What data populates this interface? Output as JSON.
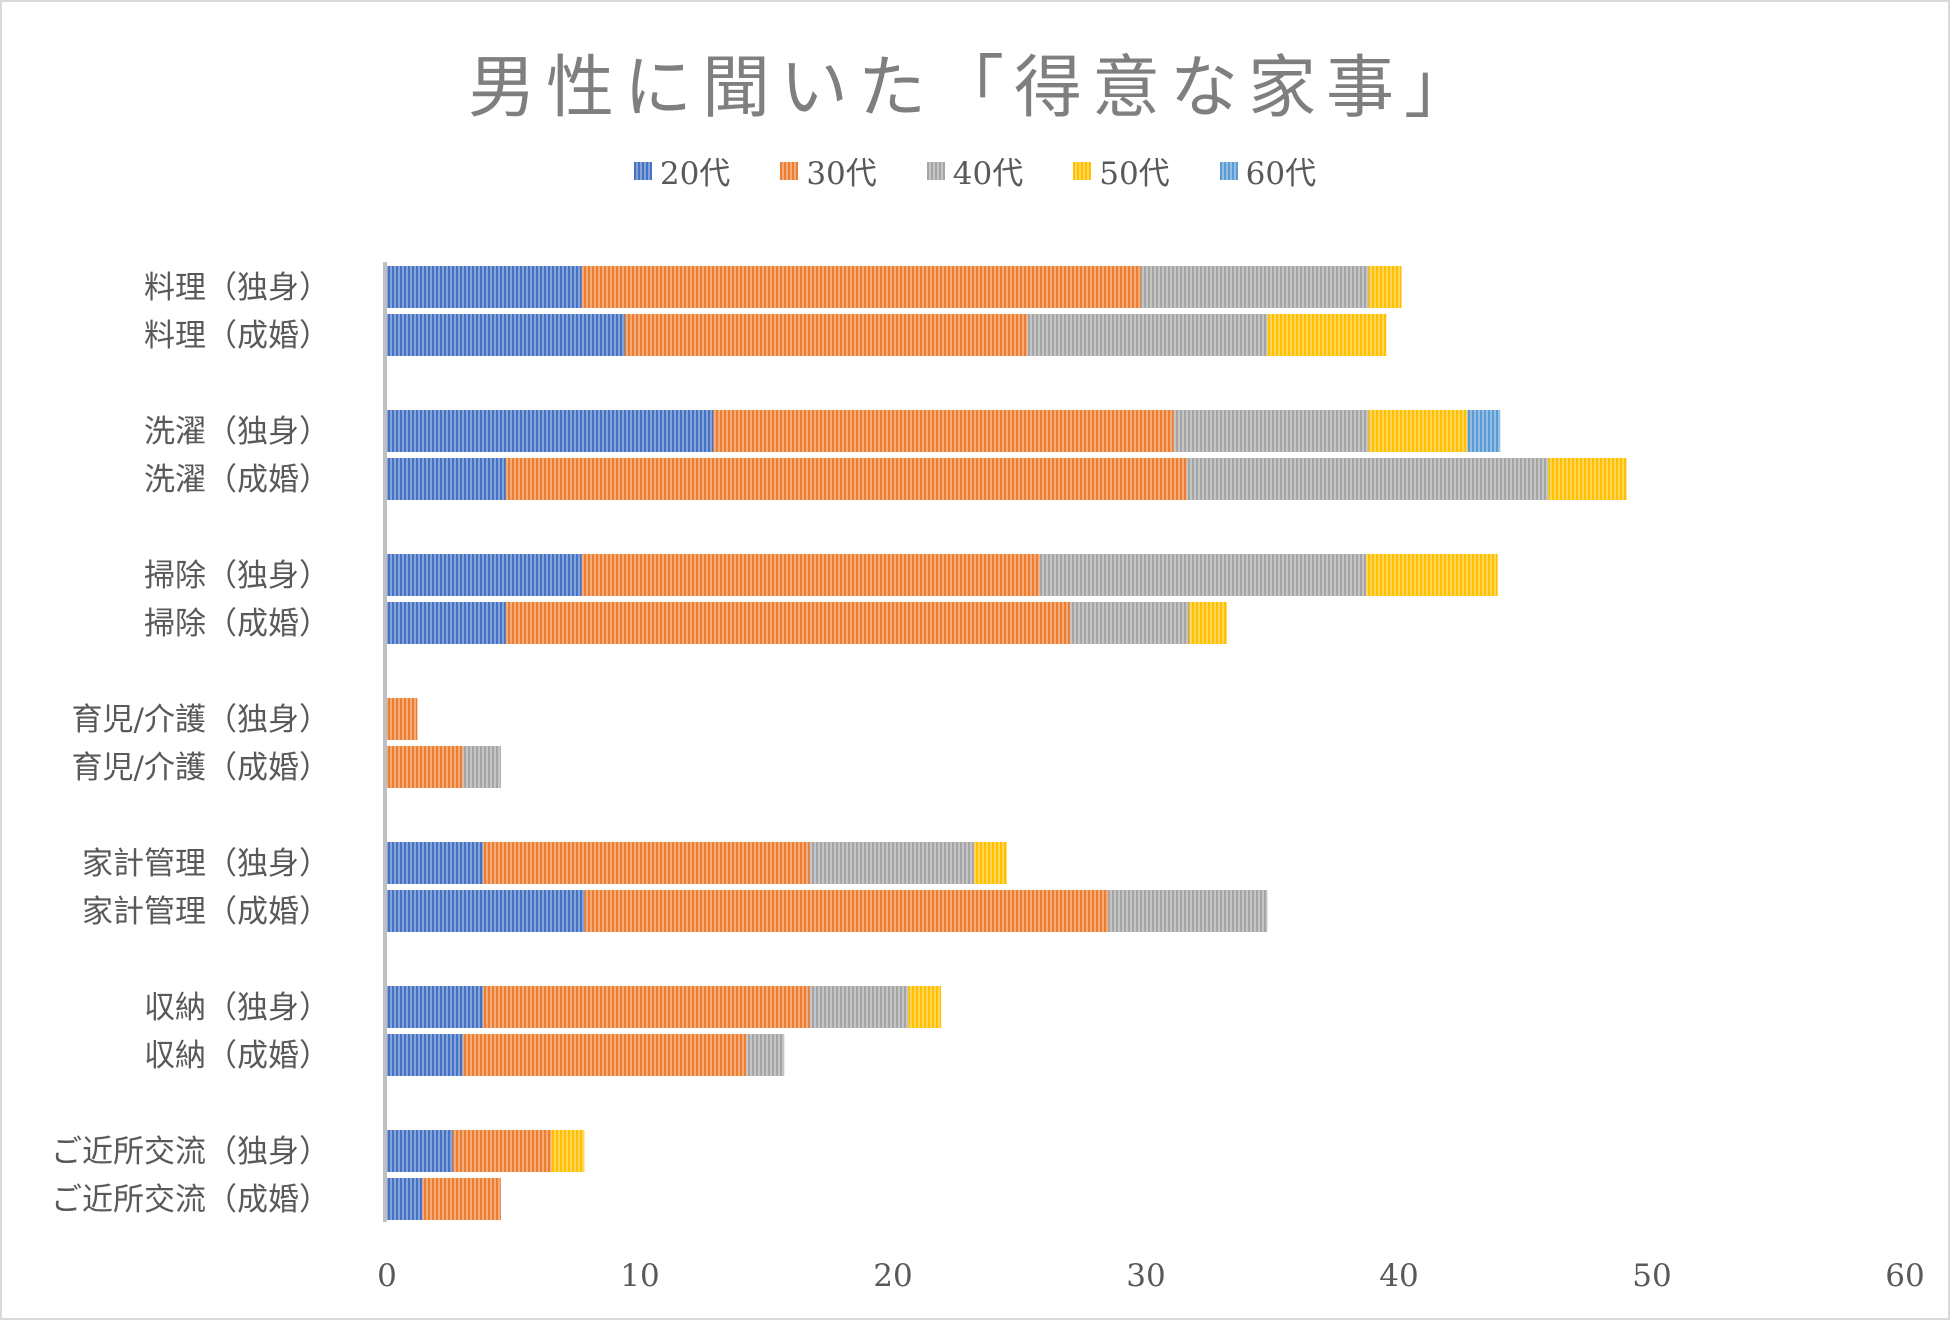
{
  "chart_data": {
    "type": "bar",
    "orientation": "horizontal",
    "stacked": true,
    "title": "男性に聞いた「得意な家事」",
    "categories": [
      "料理（独身）",
      "料理（成婚）",
      "洗濯（独身）",
      "洗濯（成婚）",
      "掃除（独身）",
      "掃除（成婚）",
      "育児/介護（独身）",
      "育児/介護（成婚）",
      "家計管理（独身）",
      "家計管理（成婚）",
      "収納（独身）",
      "収納（成婚）",
      "ご近所交流（独身）",
      "ご近所交流（成婚）"
    ],
    "groups_of": 2,
    "series": [
      {
        "name": "20代",
        "color": "#4472c4",
        "values": [
          7.7,
          9.4,
          12.9,
          4.7,
          7.7,
          4.7,
          0,
          0,
          3.8,
          7.8,
          3.8,
          3.0,
          2.6,
          1.4
        ]
      },
      {
        "name": "30代",
        "color": "#ed7d31",
        "values": [
          22.1,
          15.9,
          18.2,
          26.9,
          18.1,
          22.3,
          1.2,
          3.0,
          12.9,
          20.7,
          12.9,
          11.2,
          3.9,
          3.1
        ]
      },
      {
        "name": "40代",
        "color": "#a5a5a5",
        "values": [
          9.0,
          9.5,
          7.7,
          14.3,
          12.9,
          4.7,
          0,
          1.5,
          6.5,
          6.3,
          3.9,
          1.5,
          0,
          0
        ]
      },
      {
        "name": "50代",
        "color": "#ffc000",
        "values": [
          1.3,
          4.7,
          3.9,
          3.1,
          5.2,
          1.5,
          0,
          0,
          1.3,
          0,
          1.3,
          0,
          1.3,
          0
        ]
      },
      {
        "name": "60代",
        "color": "#5b9bd5",
        "values": [
          0,
          0,
          1.3,
          0,
          0,
          0,
          0,
          0,
          0,
          0,
          0,
          0,
          0,
          0
        ]
      }
    ],
    "xlim": [
      0,
      60
    ],
    "xticks": [
      "0",
      "10",
      "20",
      "30",
      "40",
      "50",
      "60"
    ],
    "grid": false,
    "legend_position": "top"
  }
}
